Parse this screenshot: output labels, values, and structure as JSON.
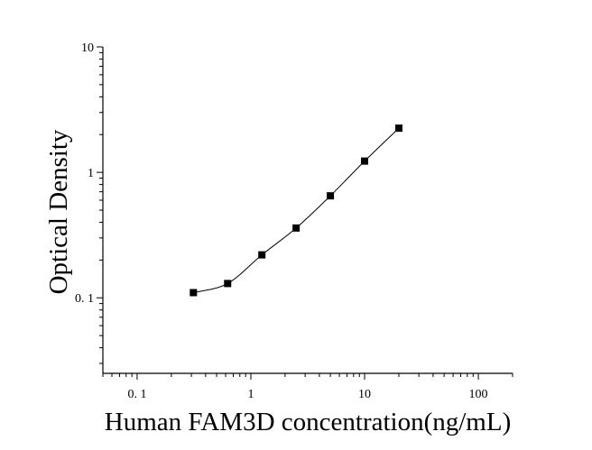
{
  "chart_data": {
    "type": "scatter",
    "xlabel": "Human FAM3D concentration(ng/mL)",
    "ylabel": "Optical Density",
    "x_scale": "log",
    "y_scale": "log",
    "xlim": [
      0.05,
      200
    ],
    "ylim": [
      0.025,
      10
    ],
    "x_ticks": [
      {
        "value": 0.1,
        "label": "0. 1"
      },
      {
        "value": 1,
        "label": "1"
      },
      {
        "value": 10,
        "label": "10"
      },
      {
        "value": 100,
        "label": "100"
      }
    ],
    "y_ticks": [
      {
        "value": 0.1,
        "label": "0. 1"
      },
      {
        "value": 1,
        "label": "1"
      },
      {
        "value": 10,
        "label": "10"
      }
    ],
    "grid": false,
    "series": [
      {
        "marker": "square",
        "color": "#000000",
        "points": [
          {
            "x": 0.3125,
            "y": 0.11
          },
          {
            "x": 0.625,
            "y": 0.13
          },
          {
            "x": 1.25,
            "y": 0.22
          },
          {
            "x": 2.5,
            "y": 0.36
          },
          {
            "x": 5,
            "y": 0.65
          },
          {
            "x": 10,
            "y": 1.23
          },
          {
            "x": 20,
            "y": 2.25
          }
        ]
      }
    ],
    "fit_curve": {
      "type": "smooth",
      "color": "#000000"
    }
  }
}
